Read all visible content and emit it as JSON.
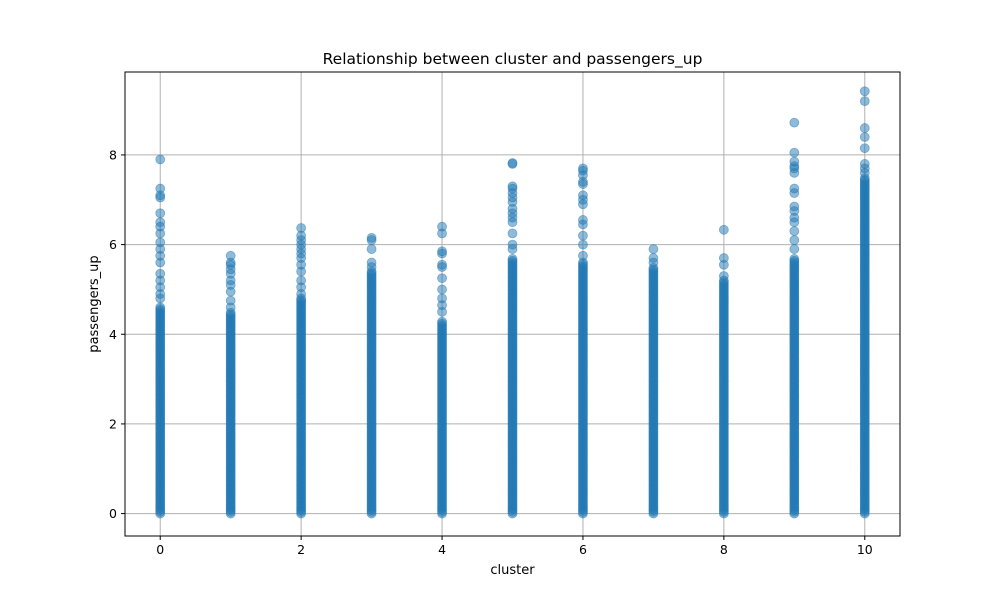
{
  "chart_data": {
    "type": "scatter",
    "title": "Relationship between cluster and passengers_up",
    "xlabel": "cluster",
    "ylabel": "passengers_up",
    "xlim": [
      -0.5,
      10.5
    ],
    "ylim": [
      -0.5,
      9.85
    ],
    "xticks": [
      0,
      2,
      4,
      6,
      8,
      10
    ],
    "yticks": [
      0,
      2,
      4,
      6,
      8
    ],
    "grid": true,
    "point_color": "#1f77b4",
    "point_alpha": 0.5,
    "clusters": [
      {
        "x": 0,
        "dense_max": 4.6,
        "y": [
          4.8,
          4.9,
          5.05,
          5.2,
          5.35,
          5.6,
          5.75,
          5.9,
          6.05,
          6.25,
          6.4,
          6.5,
          6.7,
          7.05,
          7.1,
          7.25,
          7.9
        ]
      },
      {
        "x": 1,
        "dense_max": 4.5,
        "y": [
          4.6,
          4.75,
          4.95,
          5.1,
          5.2,
          5.35,
          5.45,
          5.55,
          5.6,
          5.75
        ]
      },
      {
        "x": 2,
        "dense_max": 4.8,
        "y": [
          4.9,
          5.05,
          5.2,
          5.4,
          5.55,
          5.7,
          5.8,
          5.9,
          6.0,
          6.1,
          6.2,
          6.37
        ]
      },
      {
        "x": 3,
        "dense_max": 5.4,
        "y": [
          5.5,
          5.6,
          5.9,
          6.1,
          6.15
        ]
      },
      {
        "x": 4,
        "dense_max": 4.3,
        "y": [
          4.5,
          4.65,
          4.8,
          5.0,
          5.25,
          5.5,
          5.55,
          5.8,
          5.85,
          6.25,
          6.4
        ]
      },
      {
        "x": 5,
        "dense_max": 5.7,
        "y": [
          5.9,
          6.0,
          6.25,
          6.5,
          6.6,
          6.7,
          6.8,
          6.95,
          7.05,
          7.15,
          7.25,
          7.3,
          7.8,
          7.82
        ]
      },
      {
        "x": 6,
        "dense_max": 5.6,
        "y": [
          5.75,
          6.0,
          6.2,
          6.45,
          6.55,
          6.9,
          7.0,
          7.1,
          7.35,
          7.4,
          7.55,
          7.65,
          7.7
        ]
      },
      {
        "x": 7,
        "dense_max": 5.5,
        "y": [
          5.6,
          5.7,
          5.9
        ]
      },
      {
        "x": 8,
        "dense_max": 5.2,
        "y": [
          5.3,
          5.55,
          5.7,
          6.33
        ]
      },
      {
        "x": 9,
        "dense_max": 5.7,
        "y": [
          5.9,
          6.1,
          6.3,
          6.5,
          6.6,
          6.75,
          6.85,
          7.15,
          7.25,
          7.6,
          7.7,
          7.75,
          7.85,
          8.05,
          8.72
        ]
      },
      {
        "x": 10,
        "dense_max": 7.5,
        "y": [
          7.6,
          7.7,
          7.8,
          8.15,
          8.4,
          8.6,
          9.2,
          9.42
        ]
      }
    ]
  }
}
